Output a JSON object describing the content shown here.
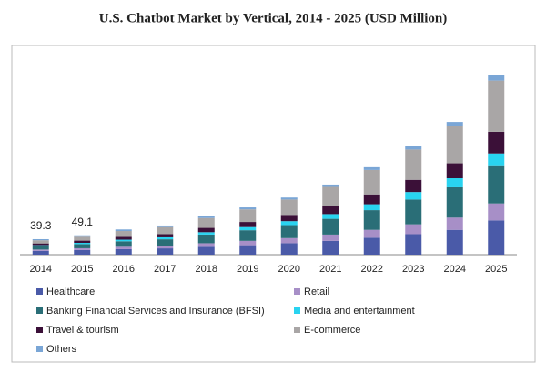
{
  "chart_data": {
    "type": "stacked_bar",
    "title": "U.S. Chatbot Market by Vertical, 2014 - 2025 (USD Million)",
    "categories": [
      "2014",
      "2015",
      "2016",
      "2017",
      "2018",
      "2019",
      "2020",
      "2021",
      "2022",
      "2023",
      "2024",
      "2025"
    ],
    "totals": [
      39.3,
      49.1,
      null,
      null,
      null,
      null,
      null,
      null,
      null,
      null,
      null,
      null
    ],
    "series": [
      {
        "name": "Healthcare",
        "color": "#4a5aa8",
        "values": [
          9.5,
          11.8,
          14,
          16,
          20,
          24,
          29,
          35,
          43,
          52,
          63,
          87
        ]
      },
      {
        "name": "Retail",
        "color": "#a78fc7",
        "values": [
          3.5,
          4.5,
          6,
          7,
          9,
          11,
          13,
          16,
          20,
          25,
          31,
          43
        ]
      },
      {
        "name": "Banking Financial Services and Insurance (BFSI)",
        "color": "#2a6e77",
        "values": [
          8.5,
          10.5,
          14,
          16,
          22,
          27,
          33,
          40,
          50,
          63,
          77,
          97
        ]
      },
      {
        "name": "Media and entertainment",
        "color": "#29d3f0",
        "values": [
          2.5,
          3.2,
          4,
          5,
          6,
          8,
          10,
          12,
          15,
          19,
          23,
          30
        ]
      },
      {
        "name": "Travel & tourism",
        "color": "#3b1038",
        "values": [
          4.5,
          5.6,
          7,
          8,
          11,
          13,
          16,
          20,
          25,
          31,
          38,
          55
        ]
      },
      {
        "name": "E-commerce",
        "color": "#a9a6a6",
        "values": [
          8.0,
          10.0,
          15,
          18,
          25,
          32,
          39,
          49,
          62,
          77,
          95,
          130
        ]
      },
      {
        "name": "Others",
        "color": "#7aa6d6",
        "values": [
          2.8,
          3.5,
          4,
          4,
          4,
          5,
          5,
          6,
          7,
          8,
          10,
          13
        ]
      }
    ]
  }
}
